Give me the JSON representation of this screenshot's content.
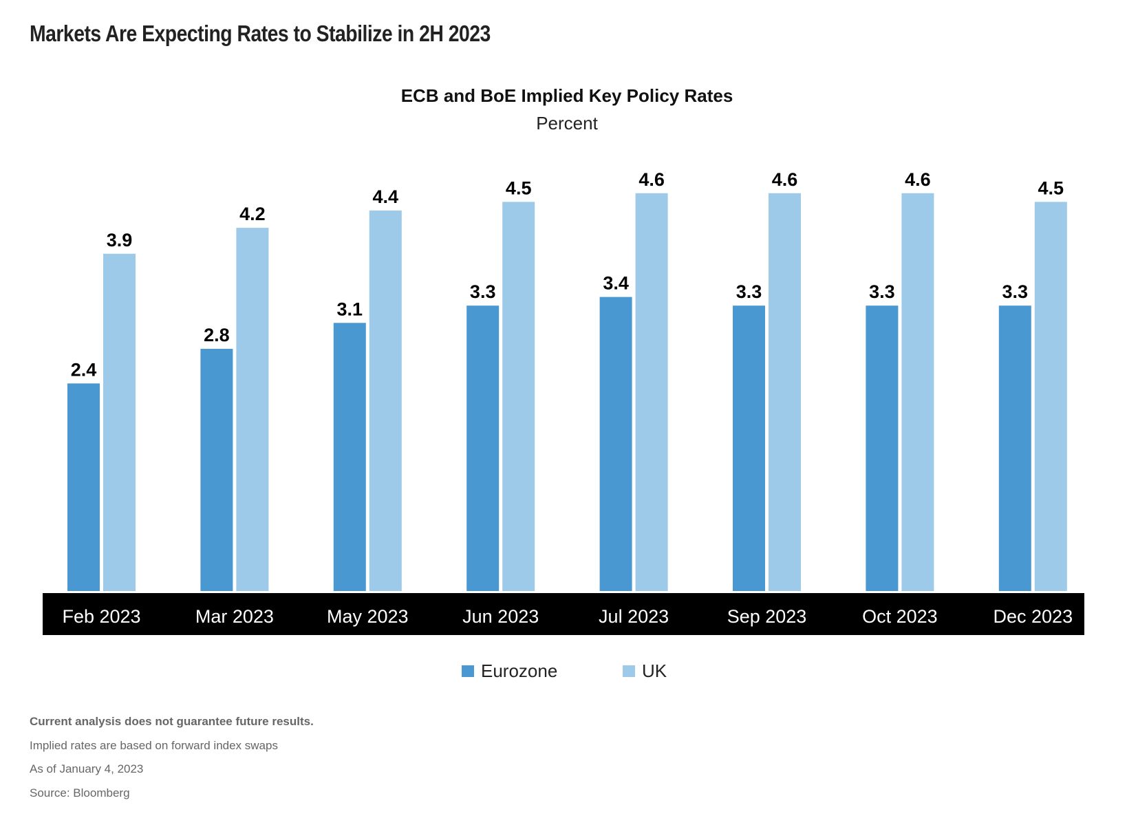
{
  "header": {
    "title": "Markets Are Expecting Rates to Stabilize in 2H 2023"
  },
  "chart_data": {
    "type": "bar",
    "title": "ECB and BoE Implied Key Policy Rates",
    "subtitle": "Percent",
    "xlabel": "",
    "ylabel": "Percent",
    "categories": [
      "Feb 2023",
      "Mar 2023",
      "May 2023",
      "Jun 2023",
      "Jul 2023",
      "Sep 2023",
      "Oct 2023",
      "Dec 2023"
    ],
    "series": [
      {
        "name": "Eurozone",
        "color": "#4A98D1",
        "values": [
          2.4,
          2.8,
          3.1,
          3.3,
          3.4,
          3.3,
          3.3,
          3.3
        ]
      },
      {
        "name": "UK",
        "color": "#9DCAE8",
        "values": [
          3.9,
          4.2,
          4.4,
          4.5,
          4.6,
          4.6,
          4.6,
          4.5
        ]
      }
    ],
    "ylim": [
      0,
      5
    ],
    "grid": false,
    "data_labels": true,
    "legend_position": "bottom-center",
    "axis_band_color": "#000000"
  },
  "legend": {
    "items": [
      {
        "label": "Eurozone",
        "color": "#4A98D1"
      },
      {
        "label": "UK",
        "color": "#9DCAE8"
      }
    ]
  },
  "footer": {
    "disclaimer": "Current analysis does not guarantee future results.",
    "notes": [
      "Implied rates are based on forward index swaps",
      "As of January 4, 2023",
      "Source: Bloomberg"
    ]
  }
}
